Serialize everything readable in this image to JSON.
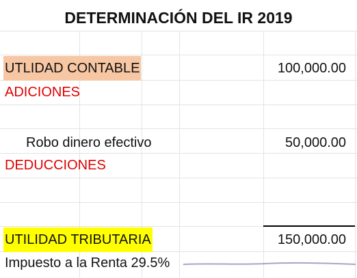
{
  "title": "DETERMINACIÓN DEL IR 2019",
  "rows": [
    {
      "label": "UTLIDAD CONTABLE",
      "value": "100,000.00"
    },
    {
      "label": "ADICIONES",
      "value": ""
    },
    {
      "label": "Robo dinero efectivo",
      "value": "50,000.00"
    },
    {
      "label": "DEDUCCIONES",
      "value": ""
    },
    {
      "label": "UTILIDAD TRIBUTARIA",
      "value": "150,000.00"
    },
    {
      "label": "Impuesto a la Renta 29.5%",
      "value": ""
    }
  ],
  "colors": {
    "section_text": "#e00000",
    "highlight_peach": "#f7c6a3",
    "highlight_yellow": "#ffff00",
    "scribble": "#8c8fb8"
  }
}
